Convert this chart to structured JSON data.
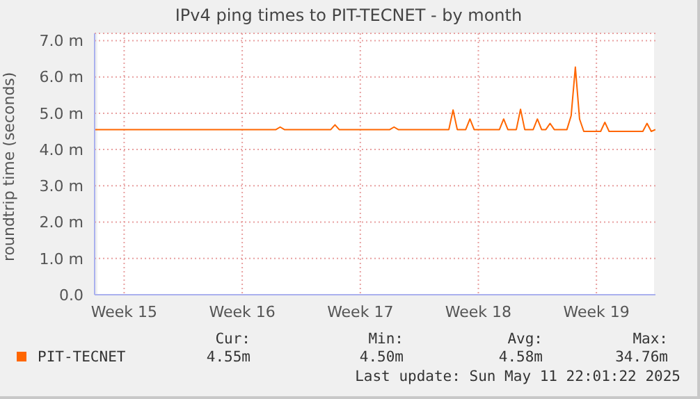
{
  "chart_data": {
    "type": "line",
    "title": "IPv4 ping times to PIT-TECNET - by month",
    "ylabel": "roundtrip time (seconds)",
    "categories": [
      null,
      null,
      null,
      null,
      null,
      null,
      null,
      "Week 15",
      null,
      null,
      null,
      null,
      null,
      null,
      null,
      null,
      null,
      null,
      null,
      null,
      null,
      null,
      null,
      null,
      null,
      null,
      null,
      null,
      null,
      null,
      null,
      null,
      null,
      null,
      null,
      "Week 16",
      null,
      null,
      null,
      null,
      null,
      null,
      null,
      null,
      null,
      null,
      null,
      null,
      null,
      null,
      null,
      null,
      null,
      null,
      null,
      null,
      null,
      null,
      null,
      null,
      null,
      null,
      null,
      "Week 17",
      null,
      null,
      null,
      null,
      null,
      null,
      null,
      null,
      null,
      null,
      null,
      null,
      null,
      null,
      null,
      null,
      null,
      null,
      null,
      null,
      null,
      null,
      null,
      null,
      null,
      null,
      null,
      "Week 18",
      null,
      null,
      null,
      null,
      null,
      null,
      null,
      null,
      null,
      null,
      null,
      null,
      null,
      null,
      null,
      null,
      null,
      null,
      null,
      null,
      null,
      null,
      null,
      null,
      null,
      null,
      null,
      "Week 19",
      null,
      null,
      null,
      null,
      null,
      null,
      null,
      null,
      null,
      null,
      null,
      null,
      null,
      null
    ],
    "series": [
      {
        "name": "PIT-TECNET",
        "color": "#ff6600",
        "values": [
          4.55,
          4.55,
          4.55,
          4.55,
          4.55,
          4.55,
          4.55,
          4.55,
          4.55,
          4.55,
          4.55,
          4.55,
          4.55,
          4.55,
          4.55,
          4.55,
          4.55,
          4.55,
          4.55,
          4.55,
          4.55,
          4.55,
          4.55,
          4.55,
          4.55,
          4.55,
          4.55,
          4.55,
          4.55,
          4.55,
          4.55,
          4.55,
          4.55,
          4.55,
          4.55,
          4.55,
          4.55,
          4.55,
          4.55,
          4.55,
          4.55,
          4.55,
          4.55,
          4.55,
          4.62,
          4.55,
          4.55,
          4.55,
          4.55,
          4.55,
          4.55,
          4.55,
          4.55,
          4.55,
          4.55,
          4.55,
          4.55,
          4.68,
          4.55,
          4.55,
          4.55,
          4.55,
          4.55,
          4.55,
          4.55,
          4.55,
          4.55,
          4.55,
          4.55,
          4.55,
          4.55,
          4.62,
          4.55,
          4.55,
          4.55,
          4.55,
          4.55,
          4.55,
          4.55,
          4.55,
          4.55,
          4.55,
          4.55,
          4.55,
          4.55,
          5.09,
          4.55,
          4.55,
          4.55,
          4.84,
          4.55,
          4.55,
          4.55,
          4.55,
          4.55,
          4.55,
          4.55,
          4.84,
          4.55,
          4.55,
          4.55,
          5.11,
          4.55,
          4.55,
          4.55,
          4.84,
          4.55,
          4.55,
          4.72,
          4.55,
          4.55,
          4.55,
          4.55,
          4.93,
          6.27,
          4.84,
          4.5,
          4.5,
          4.5,
          4.5,
          4.5,
          4.75,
          4.5,
          4.5,
          4.5,
          4.5,
          4.5,
          4.5,
          4.5,
          4.5,
          4.5,
          4.72,
          4.5,
          4.55
        ]
      }
    ],
    "ylim": [
      0,
      7.2
    ],
    "yticks": [
      {
        "value": 0,
        "label": "0.0"
      },
      {
        "value": 1,
        "label": "1.0 m"
      },
      {
        "value": 2,
        "label": "2.0 m"
      },
      {
        "value": 3,
        "label": "3.0 m"
      },
      {
        "value": 4,
        "label": "4.0 m"
      },
      {
        "value": 5,
        "label": "5.0 m"
      },
      {
        "value": 6,
        "label": "6.0 m"
      },
      {
        "value": 7,
        "label": "7.0 m"
      }
    ],
    "grid": true,
    "legend": "bottom",
    "marker": "none",
    "line_style": "solid",
    "annotations": [
      "Cur:",
      "Min:",
      "Avg:",
      "Max:",
      "4.55m",
      "4.50m",
      "4.58m",
      "34.76m",
      "Last update: Sun May 11 22:01:22 2025"
    ]
  }
}
